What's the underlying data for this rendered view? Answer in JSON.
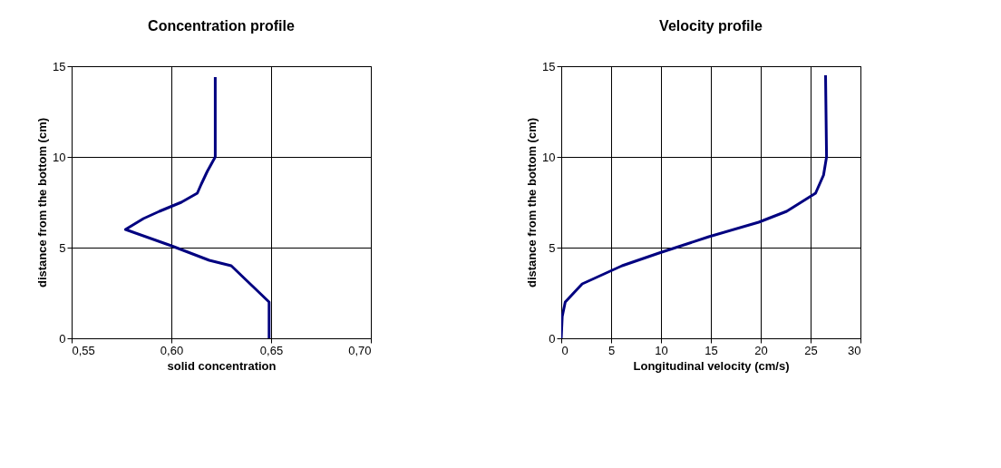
{
  "chart_data": [
    {
      "type": "line",
      "title": "Concentration profile",
      "xlabel": "solid concentration",
      "ylabel": "distance from the bottom (cm)",
      "grid": true,
      "marker": "none",
      "line_style": "solid",
      "xlim": [
        0.55,
        0.7
      ],
      "xticks": [
        {
          "value": 0.55,
          "label": "0,55"
        },
        {
          "value": 0.6,
          "label": "0,60"
        },
        {
          "value": 0.65,
          "label": "0,65"
        },
        {
          "value": 0.7,
          "label": "0,70"
        }
      ],
      "ylim": [
        0,
        15
      ],
      "yticks": [
        0,
        5,
        10,
        15
      ],
      "series": [
        {
          "color": "#000080",
          "x": [
            0.649,
            0.649,
            0.63,
            0.619,
            0.6,
            0.577,
            0.586,
            0.594,
            0.605,
            0.613,
            0.615,
            0.618,
            0.622,
            0.622
          ],
          "values": [
            0,
            2.0,
            4.0,
            4.3,
            5.1,
            6.0,
            6.6,
            7.0,
            7.5,
            8.0,
            8.5,
            9.2,
            10.0,
            14.4
          ]
        }
      ]
    },
    {
      "type": "line",
      "title": "Velocity profile",
      "xlabel": "Longitudinal velocity (cm/s)",
      "ylabel": "distance from the bottom (cm)",
      "grid": true,
      "marker": "none",
      "line_style": "solid",
      "xlim": [
        0,
        30
      ],
      "xticks": [
        0,
        5,
        10,
        15,
        20,
        25,
        30
      ],
      "ylim": [
        0,
        15
      ],
      "yticks": [
        0,
        5,
        10,
        15
      ],
      "series": [
        {
          "color": "#000080",
          "x": [
            0,
            0.1,
            0.4,
            2.1,
            4.9,
            6.1,
            9.8,
            14.8,
            19.8,
            22.6,
            25.5,
            26.3,
            26.6,
            26.5
          ],
          "values": [
            0,
            1.2,
            2.0,
            3.0,
            3.7,
            4.0,
            4.7,
            5.6,
            6.4,
            7.0,
            8.0,
            9.0,
            10.0,
            14.5
          ]
        }
      ]
    }
  ]
}
